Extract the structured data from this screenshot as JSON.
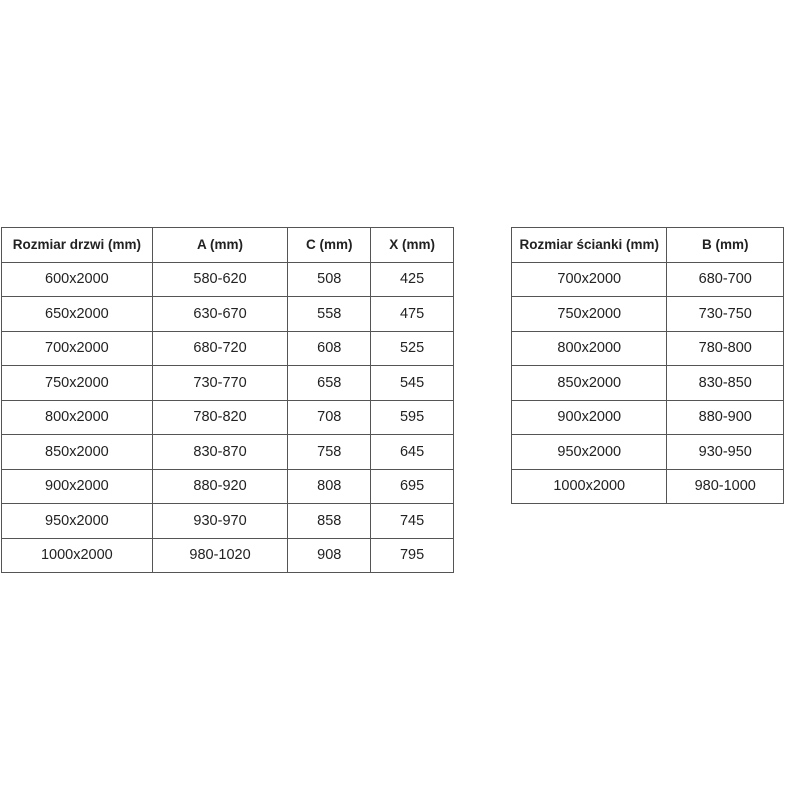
{
  "doors_table": {
    "headers": [
      "Rozmiar drzwi (mm)",
      "A (mm)",
      "C (mm)",
      "X (mm)"
    ],
    "rows": [
      [
        "600x2000",
        "580-620",
        "508",
        "425"
      ],
      [
        "650x2000",
        "630-670",
        "558",
        "475"
      ],
      [
        "700x2000",
        "680-720",
        "608",
        "525"
      ],
      [
        "750x2000",
        "730-770",
        "658",
        "545"
      ],
      [
        "800x2000",
        "780-820",
        "708",
        "595"
      ],
      [
        "850x2000",
        "830-870",
        "758",
        "645"
      ],
      [
        "900x2000",
        "880-920",
        "808",
        "695"
      ],
      [
        "950x2000",
        "930-970",
        "858",
        "745"
      ],
      [
        "1000x2000",
        "980-1020",
        "908",
        "795"
      ]
    ]
  },
  "wall_table": {
    "headers": [
      "Rozmiar ścianki (mm)",
      "B (mm)"
    ],
    "rows": [
      [
        "700x2000",
        "680-700"
      ],
      [
        "750x2000",
        "730-750"
      ],
      [
        "800x2000",
        "780-800"
      ],
      [
        "850x2000",
        "830-850"
      ],
      [
        "900x2000",
        "880-900"
      ],
      [
        "950x2000",
        "930-950"
      ],
      [
        "1000x2000",
        "980-1000"
      ]
    ]
  }
}
